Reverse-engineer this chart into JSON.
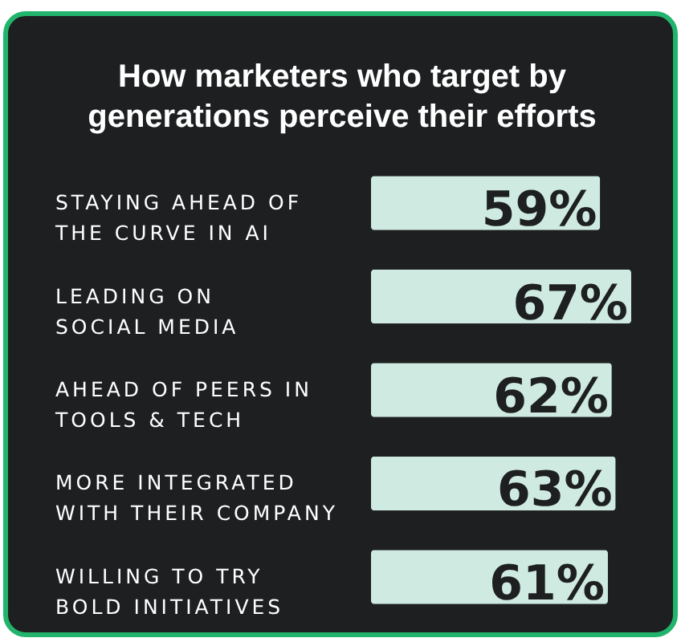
{
  "chart_data": {
    "type": "bar",
    "orientation": "horizontal",
    "title": "How marketers who target by generations perceive their efforts",
    "categories": [
      "STAYING AHEAD OF\nTHE CURVE IN AI",
      "LEADING ON\nSOCIAL MEDIA",
      "AHEAD OF PEERS IN\nTOOLS & TECH",
      "MORE INTEGRATED\nWITH THEIR COMPANY",
      "WILLING TO TRY\nBOLD INITIATIVES"
    ],
    "values": [
      59,
      67,
      62,
      63,
      61
    ],
    "value_labels": [
      "59%",
      "67%",
      "62%",
      "63%",
      "61%"
    ],
    "color": "#cfeae0"
  }
}
